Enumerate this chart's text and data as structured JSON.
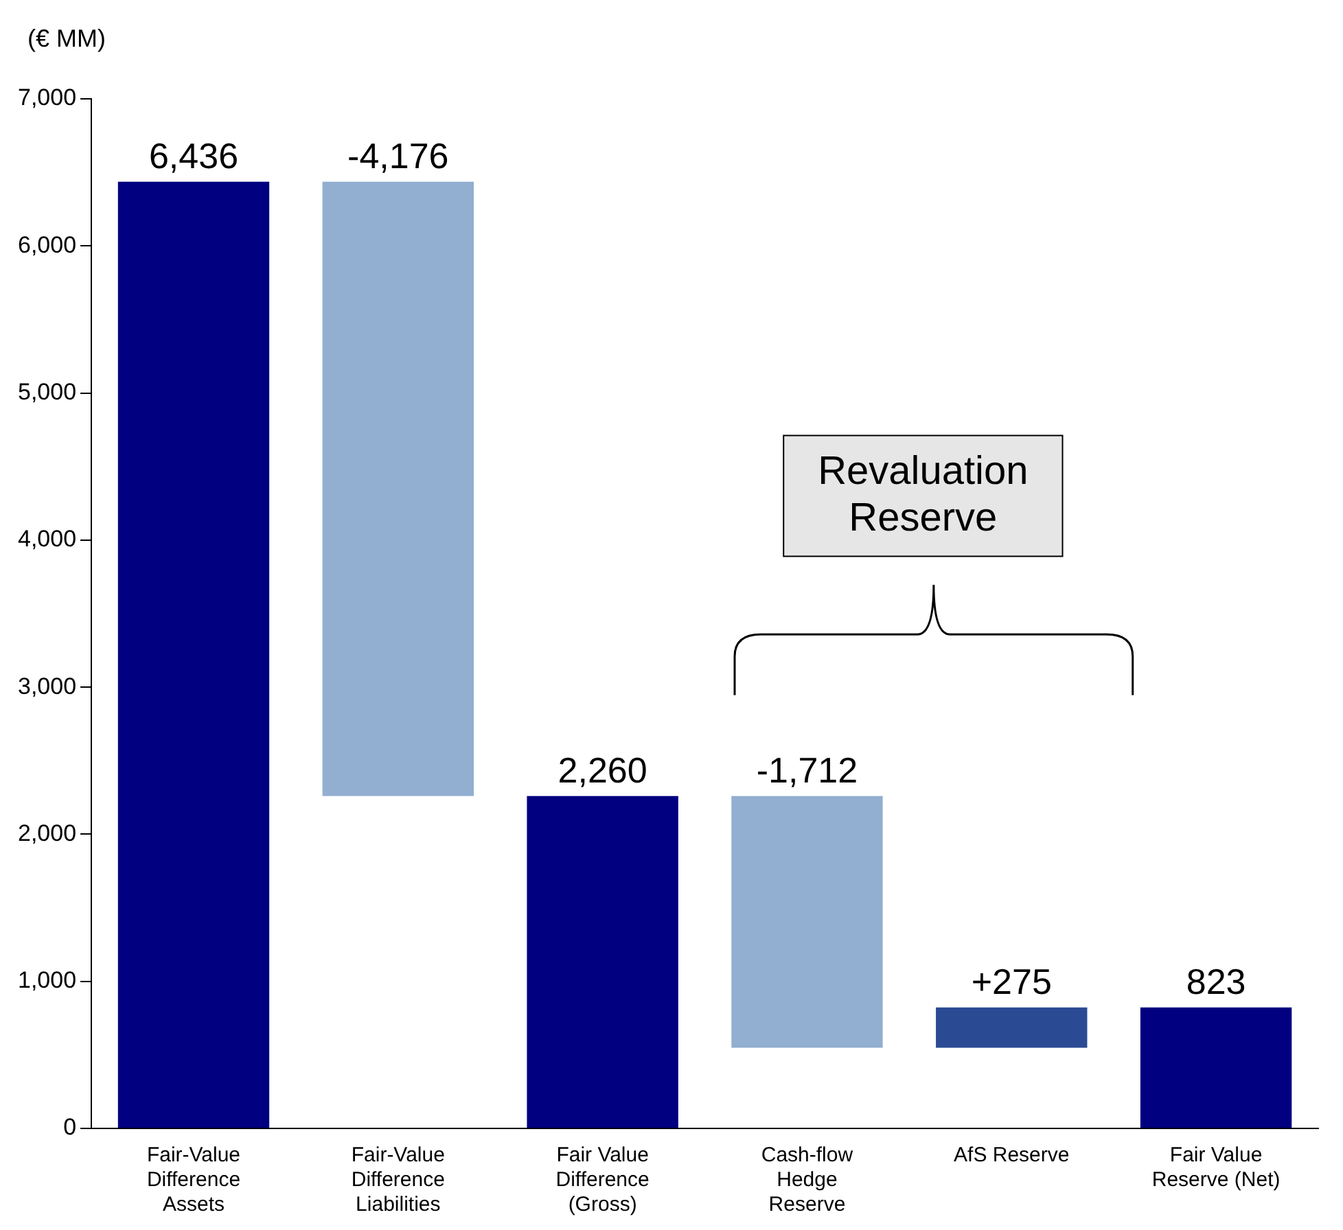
{
  "chart_data": {
    "type": "bar",
    "ylabel": "(€ MM)",
    "categories": [
      "Fair-Value\nDifference\nAssets",
      "Fair-Value\nDifference\nLiabilities",
      "Fair Value\nDifference\n(Gross)",
      "Cash-flow\nHedge\nReserve",
      "AfS Reserve",
      "Fair Value\nReserve (Net)"
    ],
    "values": [
      6436,
      -4176,
      2260,
      -1712,
      275,
      823
    ],
    "base": [
      0,
      6436,
      0,
      2260,
      548,
      0
    ],
    "colors": [
      "#000080",
      "#92aed0",
      "#000080",
      "#92aed0",
      "#2a4a94",
      "#000080"
    ],
    "value_labels": [
      "6,436",
      "-4,176",
      "2,260",
      "-1,712",
      "+275",
      "823"
    ],
    "annotations": [
      "Revaluation\nReserve"
    ],
    "ylim": [
      0,
      7000
    ],
    "yticks": [
      {
        "value": 0,
        "label": "0"
      },
      {
        "value": 1000,
        "label": "1,000"
      },
      {
        "value": 2000,
        "label": "2,000"
      },
      {
        "value": 3000,
        "label": "3,000"
      },
      {
        "value": 4000,
        "label": "4,000"
      },
      {
        "value": 5000,
        "label": "5,000"
      },
      {
        "value": 6000,
        "label": "6,000"
      },
      {
        "value": 7000,
        "label": "7,000"
      }
    ],
    "grid": false,
    "legend": false
  }
}
